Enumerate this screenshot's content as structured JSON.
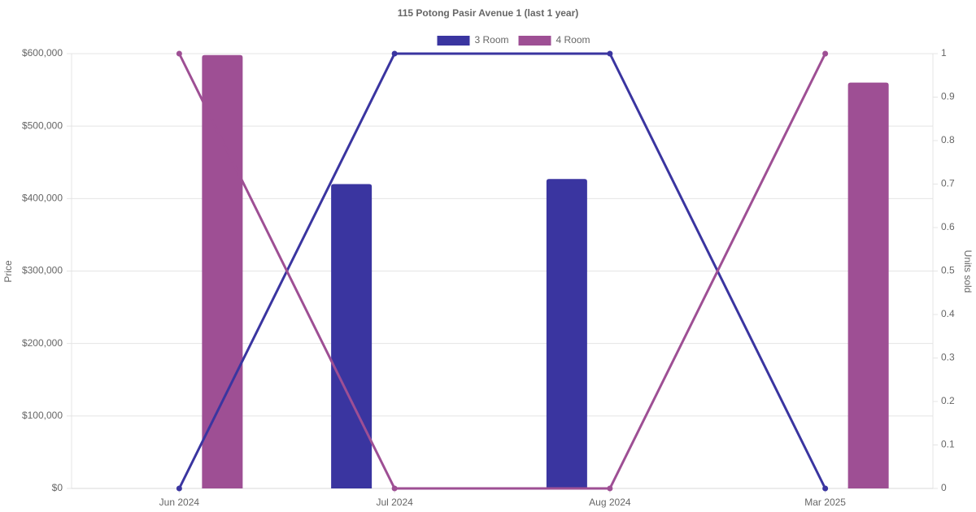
{
  "chart_data": {
    "type": "bar-line",
    "title": "115 Potong Pasir Avenue 1 (last 1 year)",
    "categories": [
      "Jun 2024",
      "Jul 2024",
      "Aug 2024",
      "Mar 2025"
    ],
    "series": [
      {
        "name": "3 Room",
        "color": "#3a35a0",
        "values": [
          null,
          420000,
          427000,
          null
        ],
        "units_sold": [
          0,
          1,
          1,
          0
        ],
        "units_axis": "y2"
      },
      {
        "name": "4 Room",
        "color": "#9e4f94",
        "values": [
          598000,
          null,
          null,
          560000
        ],
        "units_sold": [
          1,
          0,
          0,
          1
        ],
        "units_axis": "y2"
      }
    ],
    "ylabel": "Price",
    "y2label": "Units sold",
    "ylim": [
      0,
      600000
    ],
    "yticks": [
      {
        "value": 0,
        "label": "$0"
      },
      {
        "value": 100000,
        "label": "$100,000"
      },
      {
        "value": 200000,
        "label": "$200,000"
      },
      {
        "value": 300000,
        "label": "$300,000"
      },
      {
        "value": 400000,
        "label": "$400,000"
      },
      {
        "value": 500000,
        "label": "$500,000"
      },
      {
        "value": 600000,
        "label": "$600,000"
      }
    ],
    "y2lim": [
      0,
      1
    ],
    "y2ticks": [
      0,
      0.1,
      0.2,
      0.3,
      0.4,
      0.5,
      0.6,
      0.7,
      0.8,
      0.9,
      1
    ],
    "grid": true,
    "legend": "top"
  }
}
